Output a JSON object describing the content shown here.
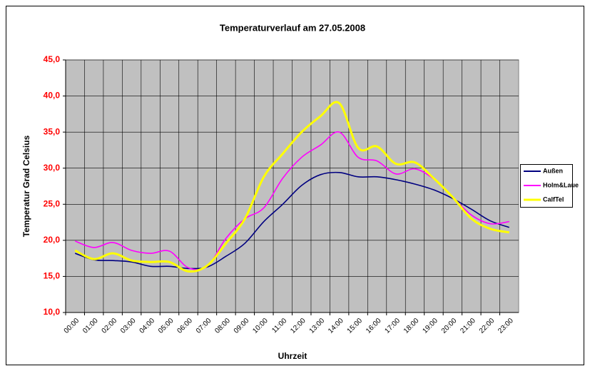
{
  "chart_data": {
    "type": "line",
    "title": "Temperaturverlauf am 27.05.2008",
    "x_label": "Uhrzeit",
    "y_label": "Temperatur Grad Celsius",
    "categories": [
      "00:00",
      "01:00",
      "02:00",
      "03:00",
      "04:00",
      "05:00",
      "06:00",
      "07:00",
      "08:00",
      "09:00",
      "10:00",
      "11:00",
      "12:00",
      "13:00",
      "14:00",
      "15:00",
      "16:00",
      "17:00",
      "18:00",
      "19:00",
      "20:00",
      "21:00",
      "22:00",
      "23:00"
    ],
    "series": [
      {
        "name": "Außen",
        "color": "#000080",
        "values": [
          18.2,
          17.3,
          17.2,
          17.0,
          16.4,
          16.4,
          16.1,
          16.3,
          17.8,
          19.6,
          22.6,
          25.0,
          27.6,
          29.1,
          29.4,
          28.8,
          28.8,
          28.4,
          27.8,
          27.0,
          25.8,
          24.3,
          22.7,
          21.8
        ]
      },
      {
        "name": "Holm&Laue",
        "color": "#ff00ff",
        "values": [
          19.9,
          19.0,
          19.7,
          18.6,
          18.2,
          18.5,
          16.2,
          16.4,
          20.3,
          23.0,
          24.5,
          28.6,
          31.5,
          33.2,
          35.0,
          31.5,
          31.0,
          29.2,
          29.9,
          28.5,
          26.0,
          23.5,
          22.3,
          22.6
        ]
      },
      {
        "name": "CalfTel",
        "color": "#ffff00",
        "values": [
          18.6,
          17.4,
          18.2,
          17.2,
          17.0,
          17.0,
          15.7,
          16.5,
          19.6,
          23.0,
          28.8,
          32.0,
          35.0,
          37.2,
          39.0,
          32.8,
          33.0,
          30.6,
          30.8,
          28.6,
          26.0,
          23.0,
          21.6,
          21.1
        ]
      }
    ],
    "ylim": [
      10,
      45
    ],
    "yticks": [
      {
        "value": 10,
        "label": "10,0"
      },
      {
        "value": 15,
        "label": "15,0"
      },
      {
        "value": 20,
        "label": "20,0"
      },
      {
        "value": 25,
        "label": "25,0"
      },
      {
        "value": 30,
        "label": "30,0"
      },
      {
        "value": 35,
        "label": "35,0"
      },
      {
        "value": 40,
        "label": "40,0"
      },
      {
        "value": 45,
        "label": "45,0"
      }
    ],
    "grid": true,
    "legend": "right"
  }
}
